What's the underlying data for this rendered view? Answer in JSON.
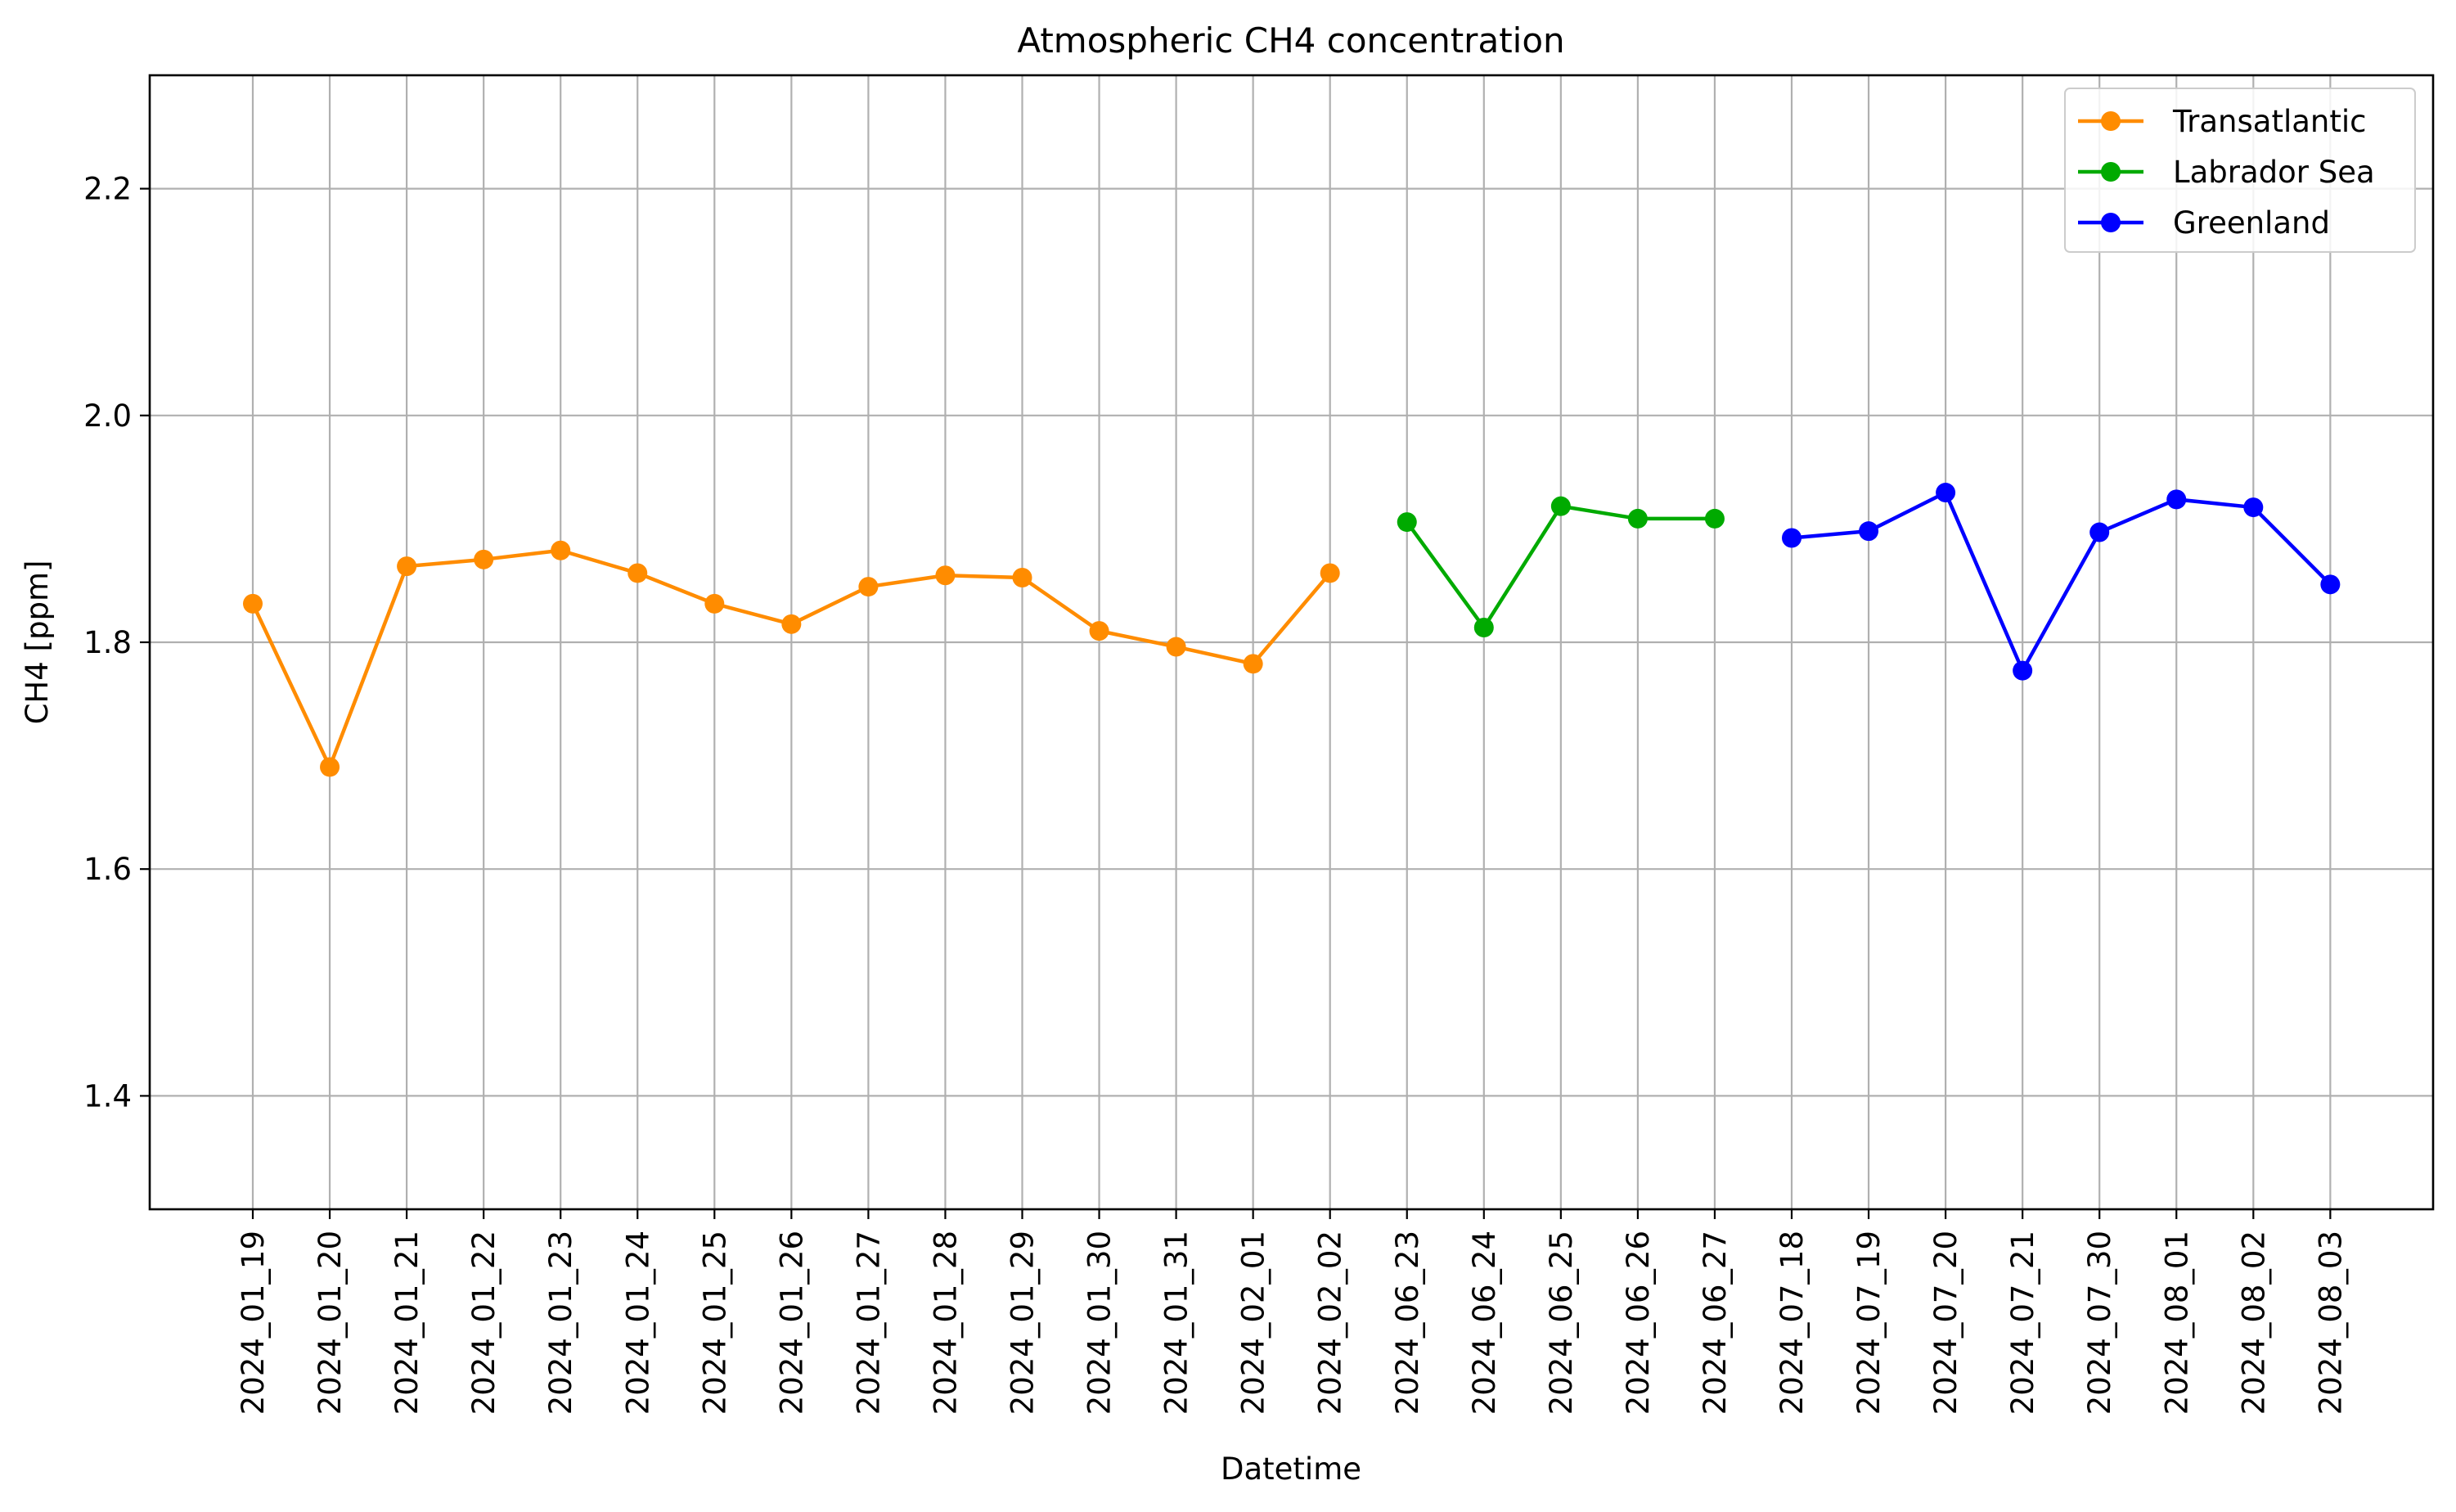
{
  "chart_data": {
    "type": "line",
    "title": "Atmospheric CH4 concentration",
    "xlabel": "Datetime",
    "ylabel": "CH4 [ppm]",
    "ylim": [
      1.3,
      2.3
    ],
    "yticks": [
      "1.4",
      "1.6",
      "1.8",
      "2.0",
      "2.2"
    ],
    "grid": true,
    "legend_position": "top-right",
    "categories": [
      "2024_01_19",
      "2024_01_20",
      "2024_01_21",
      "2024_01_22",
      "2024_01_23",
      "2024_01_24",
      "2024_01_25",
      "2024_01_26",
      "2024_01_27",
      "2024_01_28",
      "2024_01_29",
      "2024_01_30",
      "2024_01_31",
      "2024_02_01",
      "2024_02_02",
      "2024_06_23",
      "2024_06_24",
      "2024_06_25",
      "2024_06_26",
      "2024_06_27",
      "2024_07_18",
      "2024_07_19",
      "2024_07_20",
      "2024_07_21",
      "2024_07_30",
      "2024_08_01",
      "2024_08_02",
      "2024_08_03"
    ],
    "series": [
      {
        "name": "Transatlantic",
        "color": "#ff8c00",
        "x": [
          "2024_01_19",
          "2024_01_20",
          "2024_01_21",
          "2024_01_22",
          "2024_01_23",
          "2024_01_24",
          "2024_01_25",
          "2024_01_26",
          "2024_01_27",
          "2024_01_28",
          "2024_01_29",
          "2024_01_30",
          "2024_01_31",
          "2024_02_01",
          "2024_02_02"
        ],
        "values": [
          1.834,
          1.69,
          1.867,
          1.873,
          1.881,
          1.861,
          1.834,
          1.816,
          1.849,
          1.859,
          1.857,
          1.81,
          1.796,
          1.781,
          1.861
        ]
      },
      {
        "name": "Labrador Sea",
        "color": "#00aa00",
        "x": [
          "2024_06_23",
          "2024_06_24",
          "2024_06_25",
          "2024_06_26",
          "2024_06_27"
        ],
        "values": [
          1.906,
          1.813,
          1.92,
          1.909,
          1.909
        ]
      },
      {
        "name": "Greenland",
        "color": "#0000ff",
        "x": [
          "2024_07_18",
          "2024_07_19",
          "2024_07_20",
          "2024_07_21",
          "2024_07_30",
          "2024_08_01",
          "2024_08_02",
          "2024_08_03"
        ],
        "values": [
          1.892,
          1.898,
          1.932,
          1.775,
          1.897,
          1.926,
          1.919,
          1.851
        ]
      }
    ]
  }
}
